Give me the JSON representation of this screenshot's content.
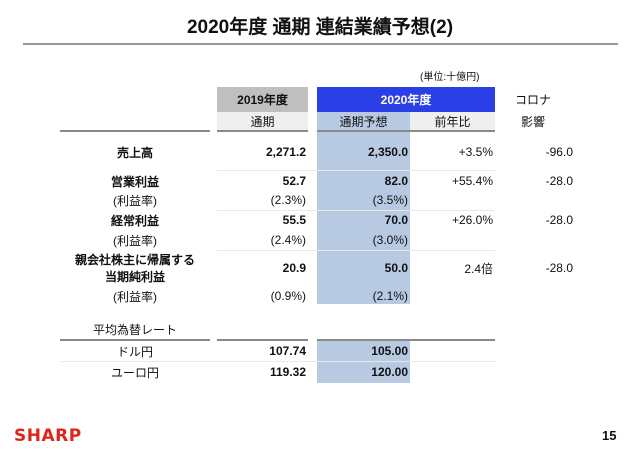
{
  "title": "2020年度 通期 連結業績予想(2)",
  "unit": "(単位:十億円)",
  "headers": {
    "fy2019": "2019年度",
    "fy2020": "2020年度",
    "corona_line1": "コロナ",
    "corona_line2": "影響",
    "full_year": "通期",
    "forecast": "通期予想",
    "yoy": "前年比"
  },
  "rows": [
    {
      "label": "売上高",
      "fy2019": "2,271.2",
      "fy2020": "2,350.0",
      "yoy": "+3.5%",
      "corona": "-96.0"
    },
    {
      "label": "営業利益",
      "fy2019": "52.7",
      "fy2020": "82.0",
      "yoy": "+55.4%",
      "corona": "-28.0"
    },
    {
      "label": "(利益率)",
      "fy2019": "(2.3%)",
      "fy2020": "(3.5%)"
    },
    {
      "label": "経常利益",
      "fy2019": "55.5",
      "fy2020": "70.0",
      "yoy": "+26.0%",
      "corona": "-28.0"
    },
    {
      "label": "(利益率)",
      "fy2019": "(2.4%)",
      "fy2020": "(3.0%)"
    },
    {
      "label_line1": "親会社株主に帰属する",
      "label_line2": "当期純利益",
      "fy2019": "20.9",
      "fy2020": "50.0",
      "yoy": "2.4倍",
      "corona": "-28.0"
    },
    {
      "label": "(利益率)",
      "fy2019": "(0.9%)",
      "fy2020": "(2.1%)"
    }
  ],
  "fx": {
    "heading": "平均為替レート",
    "rows": [
      {
        "label": "ドル円",
        "fy2019": "107.74",
        "fy2020": "105.00"
      },
      {
        "label": "ユーロ円",
        "fy2019": "119.32",
        "fy2020": "120.00"
      }
    ]
  },
  "footer": {
    "logo": "SHARP",
    "page": "15"
  },
  "colors": {
    "blue_header": "#2b3fe6",
    "blue_column": "#b8c9e2",
    "logo_red": "#e0231b"
  }
}
